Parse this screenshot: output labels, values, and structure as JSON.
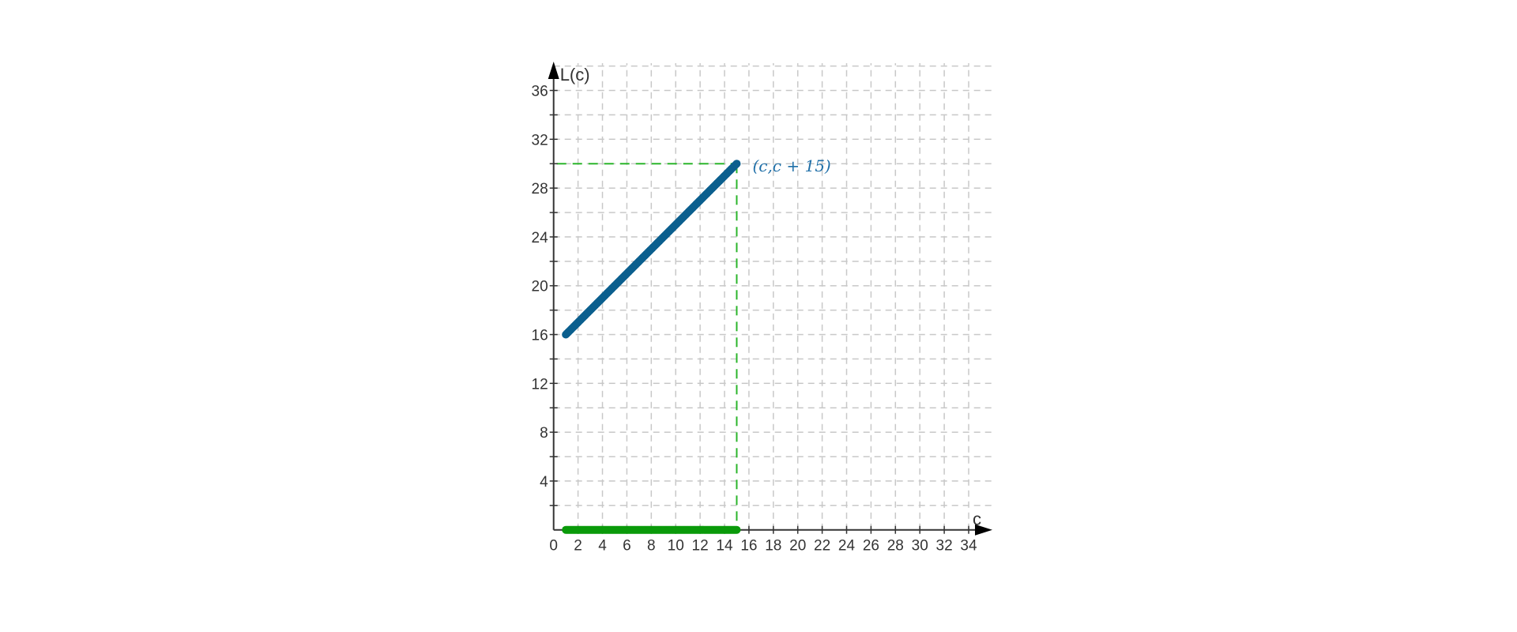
{
  "chart_data": {
    "type": "scatter",
    "title": "",
    "xlabel": "c",
    "ylabel": "L(c)",
    "xlim": [
      0,
      35
    ],
    "ylim": [
      0,
      37
    ],
    "x_ticks": [
      0,
      2,
      4,
      6,
      8,
      10,
      12,
      14,
      16,
      18,
      20,
      22,
      24,
      26,
      28,
      30,
      32,
      34
    ],
    "y_ticks": [
      4,
      8,
      12,
      16,
      20,
      24,
      28,
      32,
      36
    ],
    "grid": true,
    "grid_style": "dashed",
    "series": [
      {
        "color": "#0b5f8e",
        "x": [
          1,
          1.5,
          2,
          2.5,
          3,
          3.5,
          4,
          4.5,
          5,
          5.5,
          6,
          6.5,
          7,
          7.5,
          8,
          8.5,
          9,
          9.5,
          10,
          10.5,
          11,
          11.5,
          12,
          12.5,
          13,
          13.5,
          14,
          14.5,
          15
        ],
        "y": [
          16,
          16.5,
          17,
          17.5,
          18,
          18.5,
          19,
          19.5,
          20,
          20.5,
          21,
          21.5,
          22,
          22.5,
          23,
          23.5,
          24,
          24.5,
          25,
          25.5,
          26,
          26.5,
          27,
          27.5,
          28,
          28.5,
          29,
          29.5,
          30
        ]
      },
      {
        "color": "#0a9a0a",
        "x": [
          1,
          1.5,
          2,
          2.5,
          3,
          3.5,
          4,
          4.5,
          5,
          5.5,
          6,
          6.5,
          7,
          7.5,
          8,
          8.5,
          9,
          9.5,
          10,
          10.5,
          11,
          11.5,
          12,
          12.5,
          13,
          13.5,
          14,
          14.5,
          15
        ],
        "y": [
          0,
          0,
          0,
          0,
          0,
          0,
          0,
          0,
          0,
          0,
          0,
          0,
          0,
          0,
          0,
          0,
          0,
          0,
          0,
          0,
          0,
          0,
          0,
          0,
          0,
          0,
          0,
          0,
          0
        ]
      }
    ],
    "guide_point": {
      "x": 15,
      "y": 30,
      "color": "#2bb52b"
    },
    "annotation": {
      "text": "(c,c + 15)",
      "color": "#1f6fa8"
    }
  }
}
